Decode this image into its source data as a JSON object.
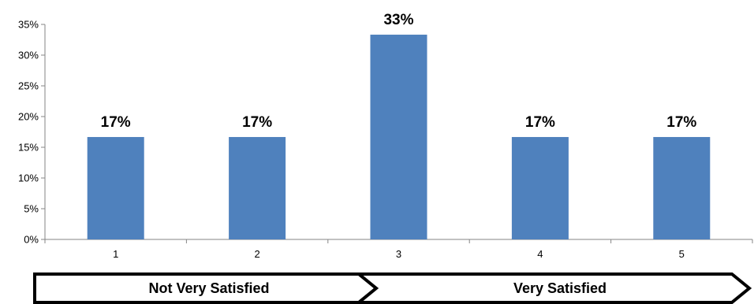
{
  "chart_data": {
    "type": "bar",
    "categories": [
      "1",
      "2",
      "3",
      "4",
      "5"
    ],
    "values": [
      16.67,
      16.67,
      33.33,
      16.67,
      16.67
    ],
    "data_labels": [
      "17%",
      "17%",
      "33%",
      "17%",
      "17%"
    ],
    "yticks": [
      "0%",
      "5%",
      "10%",
      "15%",
      "20%",
      "25%",
      "30%",
      "35%"
    ],
    "ylim": [
      0,
      35
    ],
    "grid": false,
    "legend": "none",
    "bar_color": "#4F81BD",
    "scale_labels": {
      "low": "Not Very Satisfied",
      "high": "Very Satisfied"
    }
  }
}
